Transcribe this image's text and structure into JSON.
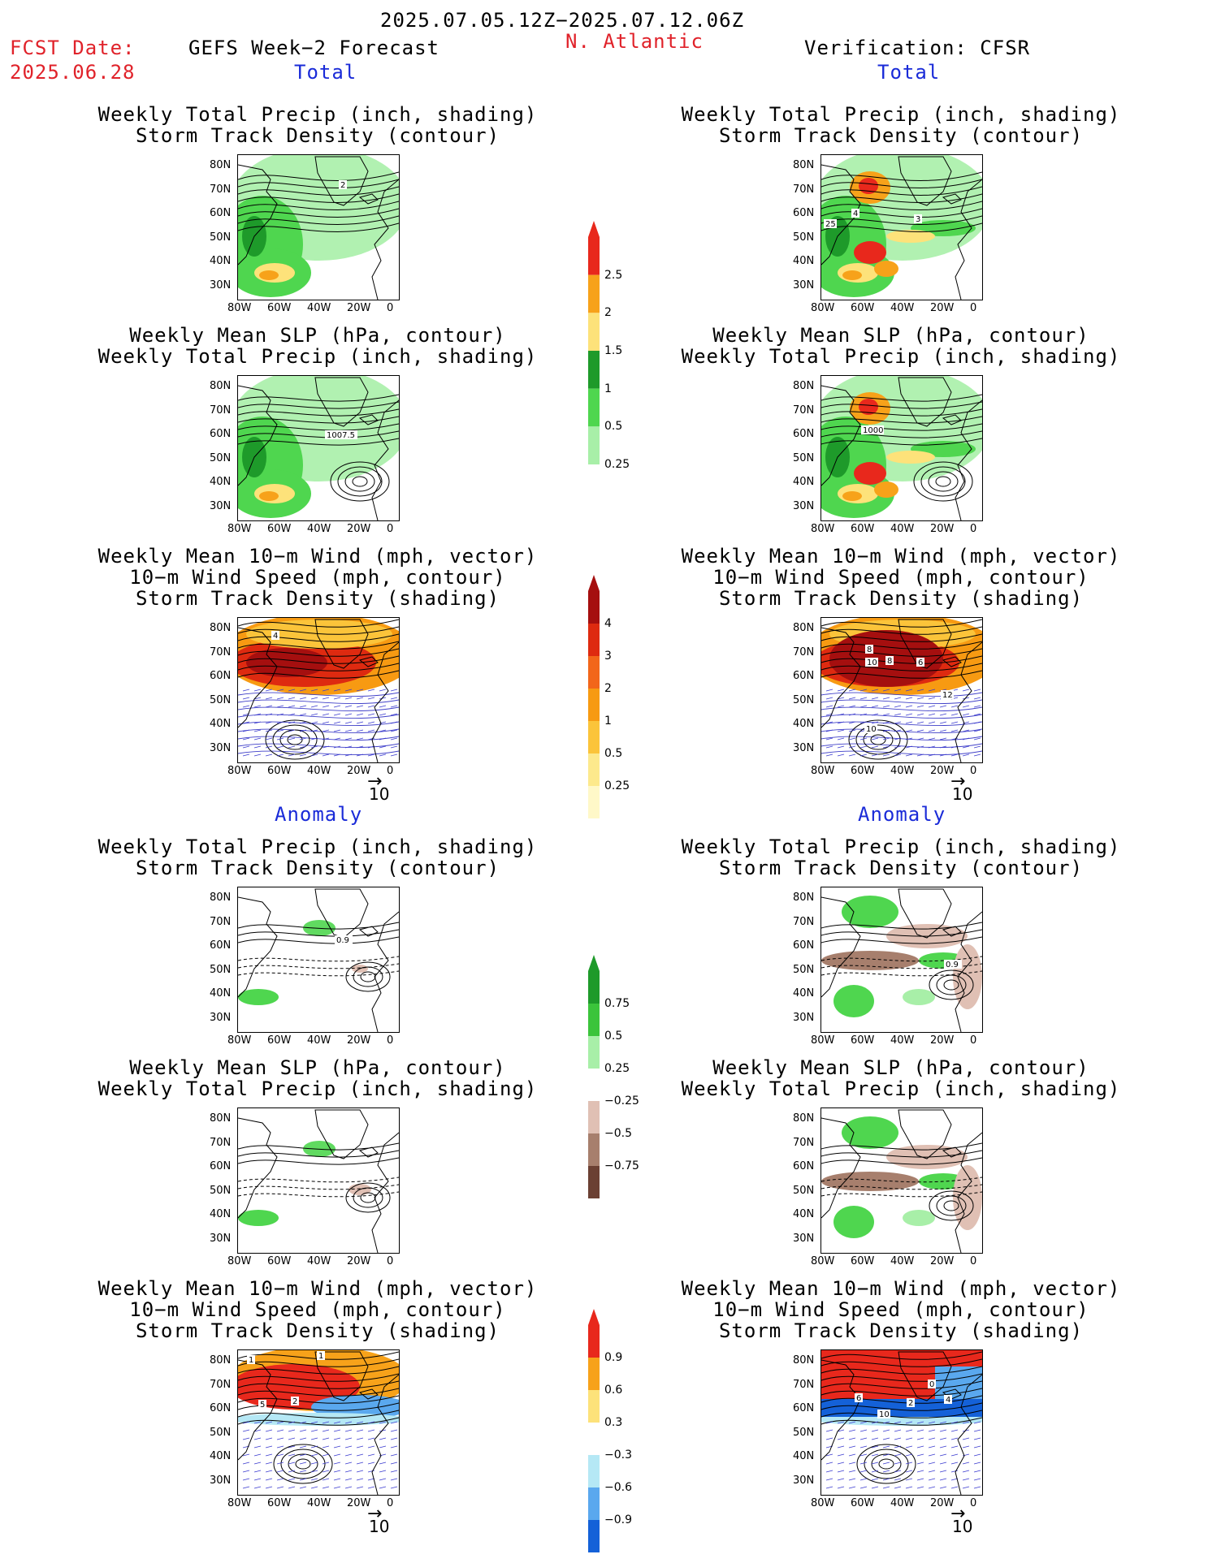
{
  "header": {
    "date_range": "2025.07.05.12Z−2025.07.12.06Z",
    "fcst_label": "FCST Date:",
    "fcst_date": "2025.06.28",
    "model": "GEFS Week−2 Forecast",
    "region": "N. Atlantic",
    "verification": "Verification: CFSR"
  },
  "sections": {
    "total": "Total",
    "anomaly": "Anomaly"
  },
  "panel_titles": {
    "precip_track_1": "Weekly Total Precip (inch, shading)",
    "precip_track_2": "Storm Track Density (contour)",
    "slp_precip_1": "Weekly Mean SLP (hPa, contour)",
    "slp_precip_2": "Weekly Total Precip (inch, shading)",
    "wind_1": "Weekly Mean 10−m Wind (mph, vector)",
    "wind_2": "10−m Wind Speed (mph, contour)",
    "wind_3": "Storm Track Density (shading)"
  },
  "axes": {
    "lat_ticks": [
      "80N",
      "70N",
      "60N",
      "50N",
      "40N",
      "30N"
    ],
    "lon_ticks": [
      "80W",
      "60W",
      "40W",
      "20W",
      "0"
    ]
  },
  "vector_ref": "10",
  "colorbars": {
    "precip_total": {
      "labels": [
        "2.5",
        "2",
        "1.5",
        "1",
        "0.5",
        "0.25"
      ],
      "colors": [
        "#e8281c",
        "#f7a21a",
        "#fde27a",
        "#1e9a2a",
        "#4fd64f",
        "#a8efa8"
      ]
    },
    "track_total": {
      "labels": [
        "4",
        "3",
        "2",
        "1",
        "0.5",
        "0.25"
      ],
      "colors": [
        "#a50f0f",
        "#de2a10",
        "#f2661a",
        "#f79a12",
        "#fbc43a",
        "#fde98c",
        "#fff8c8"
      ]
    },
    "precip_anom": {
      "labels": [
        "0.75",
        "0.5",
        "0.25",
        "−0.25",
        "−0.5",
        "−0.75"
      ],
      "colors": [
        "#1e9a2a",
        "#3bc43b",
        "#a8efa8",
        "#ffffff",
        "#e0c0b4",
        "#a77f6d",
        "#6b4033"
      ]
    },
    "track_anom": {
      "labels": [
        "0.9",
        "0.6",
        "0.3",
        "−0.3",
        "−0.6",
        "−0.9"
      ],
      "colors": [
        "#e8281c",
        "#f7a21a",
        "#fde27a",
        "#ffffff",
        "#b5e8f5",
        "#5aa8ee",
        "#1461d8"
      ]
    }
  },
  "contour_labels": {
    "r1_left": "2",
    "r1_right_a": "3",
    "r1_right_b": "4",
    "r1_right_c": "25",
    "r2_left": "1007.5",
    "r2_right": "1000",
    "r3_left": "4",
    "r3_right_a": "8",
    "r3_right_b": "10",
    "r3_right_c": "8",
    "r3_right_d": "6",
    "r3_right_e": "12",
    "r3_right_f": "10",
    "r4_left": "0.9",
    "r4_right": "0.9",
    "r6_left_a": "1",
    "r6_left_b": "1",
    "r6_left_c": "5",
    "r6_left_d": "2",
    "r6_right_a": "6",
    "r6_right_b": "10",
    "r6_right_c": "2",
    "r6_right_d": "0",
    "r6_right_e": "4"
  }
}
